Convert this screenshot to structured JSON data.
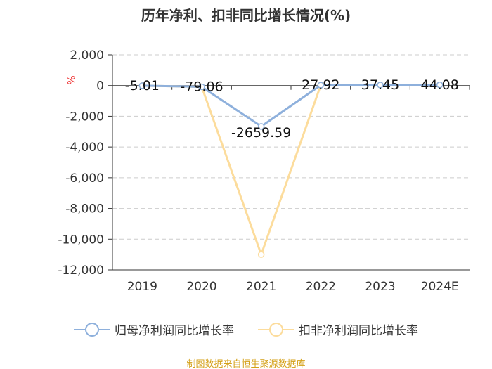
{
  "title": "历年净利、扣非同比增长情况(%)",
  "source": "制图数据来自恒生聚源数据库",
  "chart_data": {
    "type": "line",
    "title": "历年净利、扣非同比增长情况(%)",
    "ylabel": "%",
    "categories": [
      "2019",
      "2020",
      "2021",
      "2022",
      "2023",
      "2024E"
    ],
    "ylim": [
      -12000,
      2000
    ],
    "yticks": [
      2000,
      0,
      -2000,
      -4000,
      -6000,
      -8000,
      -10000,
      -12000
    ],
    "ytick_labels": [
      "2,000",
      "0",
      "-2,000",
      "-4,000",
      "-6,000",
      "-8,000",
      "-10,000",
      "-12,000"
    ],
    "grid": true,
    "legend_position": "bottom",
    "series": [
      {
        "name": "归母净利润同比增长率",
        "color": "#8eb0dc",
        "values": [
          -5.01,
          -79.06,
          -2659.59,
          27.92,
          37.45,
          44.08
        ],
        "labels": [
          "-5.01",
          "-79.06",
          "-2659.59",
          "27.92",
          "37.45",
          "44.08"
        ]
      },
      {
        "name": "扣非净利润同比增长率",
        "color": "#fcdc9c",
        "values": [
          -5,
          -80,
          -11000,
          28,
          37,
          44
        ]
      }
    ]
  }
}
